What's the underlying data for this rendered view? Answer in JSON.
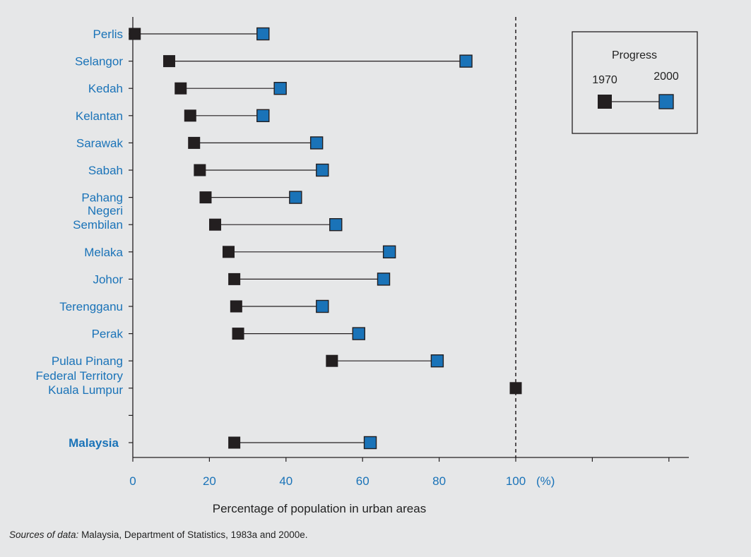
{
  "chart_data": {
    "type": "dumbbell",
    "categories": [
      "Perlis",
      "Selangor",
      "Kedah",
      "Kelantan",
      "Sarawak",
      "Sabah",
      "Pahang",
      "Negeri Sembilan",
      "Melaka",
      "Johor",
      "Terengganu",
      "Perak",
      "Pulau Pinang",
      "Federal Territory Kuala Lumpur",
      "Malaysia"
    ],
    "category_lines": [
      [
        "Perlis"
      ],
      [
        "Selangor"
      ],
      [
        "Kedah"
      ],
      [
        "Kelantan"
      ],
      [
        "Sarawak"
      ],
      [
        "Sabah"
      ],
      [
        "Pahang"
      ],
      [
        "Negeri",
        "Sembilan"
      ],
      [
        "Melaka"
      ],
      [
        "Johor"
      ],
      [
        "Terengganu"
      ],
      [
        "Perak"
      ],
      [
        "Pulau Pinang"
      ],
      [
        "Federal Territory",
        "Kuala Lumpur"
      ],
      [
        "Malaysia"
      ]
    ],
    "series": [
      {
        "name": "1970",
        "color": "#231f20",
        "values": [
          0.5,
          9.5,
          12.5,
          15,
          16,
          17.5,
          19,
          21.5,
          25,
          26.5,
          27,
          27.5,
          52,
          100,
          26.5
        ]
      },
      {
        "name": "2000",
        "color": "#1a73b8",
        "values": [
          34,
          87,
          38.5,
          34,
          48,
          49.5,
          42.5,
          53,
          67,
          65.5,
          49.5,
          59,
          79.5,
          null,
          62
        ]
      }
    ],
    "xlabel": "Percentage of population in urban areas",
    "x_ticks": [
      0,
      20,
      40,
      60,
      80,
      100
    ],
    "x_unit": "(%)",
    "xlim": [
      0,
      145
    ],
    "reference_line": 100,
    "legend": {
      "title": "Progress",
      "start_label": "1970",
      "end_label": "2000",
      "position": "top-right"
    }
  },
  "source_italic": "Sources of data:",
  "source_text": " Malaysia, Department of Statistics, 1983a and 2000e."
}
